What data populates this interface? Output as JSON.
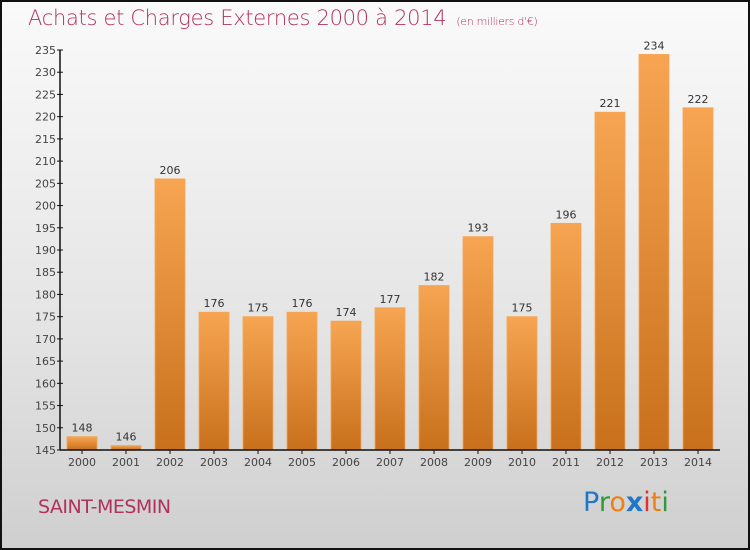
{
  "header": {
    "title": "Achats et Charges Externes 2000 à 2014",
    "subtitle": "(en milliers d'€)"
  },
  "footer": {
    "town": "SAINT-MESMIN",
    "logo_letters": [
      {
        "ch": "P",
        "color": "#1f77c9"
      },
      {
        "ch": "r",
        "color": "#2f9a3a"
      },
      {
        "ch": "o",
        "color": "#f07f12"
      },
      {
        "ch": "x",
        "color": "#1f77c9"
      },
      {
        "ch": "i",
        "color": "#e0322a"
      },
      {
        "ch": "t",
        "color": "#f07f12"
      },
      {
        "ch": "i",
        "color": "#2f9a3a"
      }
    ]
  },
  "colors": {
    "bar_top": "#f7a552",
    "bar_bottom": "#c8701c",
    "title": "#b0325e"
  },
  "chart_data": {
    "type": "bar",
    "title": "Achats et Charges Externes 2000 à 2014",
    "subtitle": "(en milliers d'€)",
    "xlabel": "",
    "ylabel": "",
    "categories": [
      "2000",
      "2001",
      "2002",
      "2003",
      "2004",
      "2005",
      "2006",
      "2007",
      "2008",
      "2009",
      "2010",
      "2011",
      "2012",
      "2013",
      "2014"
    ],
    "values": [
      148,
      146,
      206,
      176,
      175,
      176,
      174,
      177,
      182,
      193,
      175,
      196,
      221,
      234,
      222
    ],
    "ylim": [
      145,
      235
    ],
    "yticks": [
      145,
      150,
      155,
      160,
      165,
      170,
      175,
      180,
      185,
      190,
      195,
      200,
      205,
      210,
      215,
      220,
      225,
      230,
      235
    ],
    "grid": false,
    "legend": "none"
  }
}
